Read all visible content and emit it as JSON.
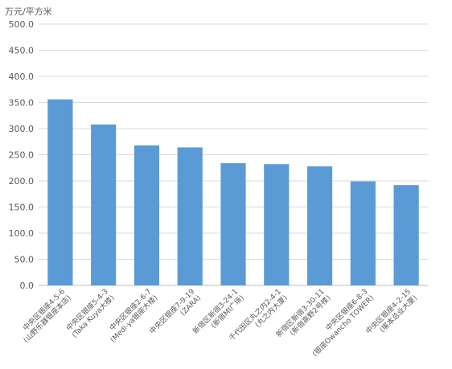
{
  "chart_data": {
    "type": "bar",
    "unit_label": "万元/平方米",
    "categories": [
      [
        "中央区银座4-5-6",
        "(山野乐器银座本店)"
      ],
      [
        "中央区银座5-4-3",
        "(Taka Kuya大楼)"
      ],
      [
        "中央区银座2-6-7",
        "(Medi-ya银座大楼)"
      ],
      [
        "中央区银座7-9-19",
        "(ZARA)"
      ],
      [
        "新宿区新宿3-24-1",
        "(新宿MI广场)"
      ],
      [
        "千代田区丸之内2-4-1",
        "(丸之内大厦)"
      ],
      [
        "新宿区新宿3-30-11",
        "(新宿高野2号楼)"
      ],
      [
        "中央区银座6-8-3",
        "(银座Owancho TOWER)"
      ],
      [
        "中央区银座4-2-15",
        "(塚本总业大厦)"
      ]
    ],
    "values": [
      356,
      308,
      268,
      264,
      234,
      232,
      228,
      199,
      192
    ],
    "ylim": [
      0,
      500
    ],
    "yticks": [
      "0.0",
      "50.0",
      "100.0",
      "150.0",
      "200.0",
      "250.0",
      "300.0",
      "350.0",
      "400.0",
      "450.0",
      "500.0"
    ],
    "grid": true,
    "colors": {
      "bar": "#5b9bd5",
      "grid": "#d9d9d9",
      "axis": "#bfbfbf",
      "text": "#595959"
    }
  }
}
